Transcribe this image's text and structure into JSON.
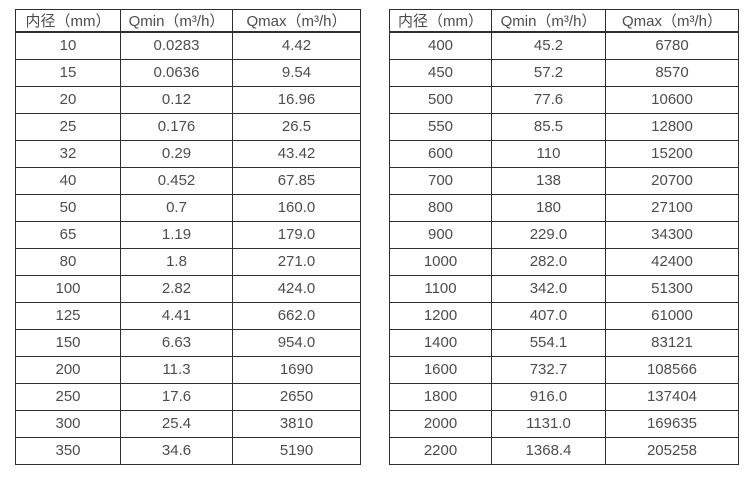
{
  "page": {
    "background": "#ffffff",
    "text_color": "#4d4d4d",
    "border_color": "#2f2f2f"
  },
  "chart_data": [
    {
      "type": "table",
      "title": "",
      "columns": [
        "内径（mm）",
        "Qmin（m³/h）",
        "Qmax（m³/h）"
      ],
      "rows": [
        [
          "10",
          "0.0283",
          "4.42"
        ],
        [
          "15",
          "0.0636",
          "9.54"
        ],
        [
          "20",
          "0.12",
          "16.96"
        ],
        [
          "25",
          "0.176",
          "26.5"
        ],
        [
          "32",
          "0.29",
          "43.42"
        ],
        [
          "40",
          "0.452",
          "67.85"
        ],
        [
          "50",
          "0.7",
          "160.0"
        ],
        [
          "65",
          "1.19",
          "179.0"
        ],
        [
          "80",
          "1.8",
          "271.0"
        ],
        [
          "100",
          "2.82",
          "424.0"
        ],
        [
          "125",
          "4.41",
          "662.0"
        ],
        [
          "150",
          "6.63",
          "954.0"
        ],
        [
          "200",
          "11.3",
          "1690"
        ],
        [
          "250",
          "17.6",
          "2650"
        ],
        [
          "300",
          "25.4",
          "3810"
        ],
        [
          "350",
          "34.6",
          "5190"
        ]
      ]
    },
    {
      "type": "table",
      "title": "",
      "columns": [
        "内径（mm）",
        "Qmin（m³/h）",
        "Qmax（m³/h）"
      ],
      "rows": [
        [
          "400",
          "45.2",
          "6780"
        ],
        [
          "450",
          "57.2",
          "8570"
        ],
        [
          "500",
          "77.6",
          "10600"
        ],
        [
          "550",
          "85.5",
          "12800"
        ],
        [
          "600",
          "110",
          "15200"
        ],
        [
          "700",
          "138",
          "20700"
        ],
        [
          "800",
          "180",
          "27100"
        ],
        [
          "900",
          "229.0",
          "34300"
        ],
        [
          "1000",
          "282.0",
          "42400"
        ],
        [
          "1100",
          "342.0",
          "51300"
        ],
        [
          "1200",
          "407.0",
          "61000"
        ],
        [
          "1400",
          "554.1",
          "83121"
        ],
        [
          "1600",
          "732.7",
          "108566"
        ],
        [
          "1800",
          "916.0",
          "137404"
        ],
        [
          "2000",
          "1131.0",
          "169635"
        ],
        [
          "2200",
          "1368.4",
          "205258"
        ]
      ]
    }
  ]
}
